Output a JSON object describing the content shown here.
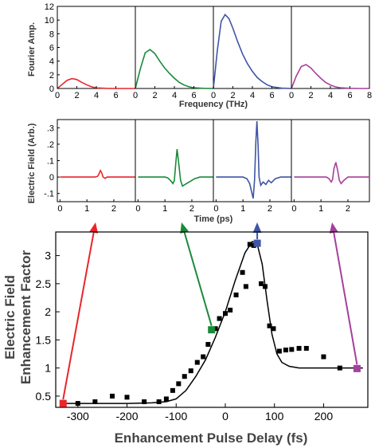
{
  "chart_data": [
    {
      "type": "line",
      "panel": "fourier",
      "ylabel": "Fourier Amp.",
      "xlabel": "Frequency (THz)",
      "xlim": [
        0,
        8
      ],
      "ylim": [
        0,
        12
      ],
      "yticks": [
        0,
        2,
        4,
        6,
        8,
        10,
        12
      ],
      "xticks_subpanel": [
        0,
        2,
        4,
        6
      ],
      "xticks_last": [
        0,
        2,
        4,
        6,
        8
      ],
      "series": [
        {
          "color": "#e8262a",
          "x": [
            0,
            0.5,
            1,
            1.5,
            2,
            2.5,
            3,
            3.5,
            4,
            5,
            6,
            7,
            8
          ],
          "y": [
            0,
            0.6,
            1.2,
            1.45,
            1.3,
            0.9,
            0.55,
            0.25,
            0.08,
            0.02,
            0,
            0,
            0
          ]
        },
        {
          "color": "#1a8a3a",
          "x": [
            0,
            0.5,
            1,
            1.5,
            2,
            2.5,
            3,
            3.5,
            4,
            4.5,
            5,
            5.5,
            6,
            7,
            8
          ],
          "y": [
            0,
            2.8,
            5.2,
            5.7,
            5.1,
            4.0,
            3.0,
            2.2,
            1.5,
            0.9,
            0.5,
            0.25,
            0.1,
            0.02,
            0
          ]
        },
        {
          "color": "#3f55a6",
          "x": [
            0,
            0.4,
            0.8,
            1.2,
            1.6,
            2,
            2.5,
            3,
            3.5,
            4,
            4.5,
            5,
            5.5,
            6,
            7,
            8
          ],
          "y": [
            0,
            5.5,
            9.8,
            10.8,
            10.2,
            8.8,
            6.8,
            5.0,
            3.6,
            2.5,
            1.6,
            1.0,
            0.55,
            0.25,
            0.05,
            0
          ]
        },
        {
          "color": "#a5409b",
          "x": [
            0,
            0.5,
            1,
            1.5,
            2,
            2.5,
            3,
            3.5,
            4,
            4.5,
            5,
            6,
            7,
            8
          ],
          "y": [
            0,
            1.8,
            3.2,
            3.5,
            3.0,
            2.2,
            1.5,
            0.9,
            0.5,
            0.25,
            0.1,
            0.02,
            0,
            0
          ]
        }
      ]
    },
    {
      "type": "line",
      "panel": "field",
      "ylabel": "Electric Field (Arb.)",
      "xlabel": "Time (ps)",
      "xlim": [
        -0.1,
        2.8
      ],
      "ylim": [
        -0.15,
        0.35
      ],
      "yticks": [
        -0.1,
        0,
        0.1,
        0.2,
        0.3
      ],
      "xticks": [
        0,
        1,
        2
      ],
      "series": [
        {
          "color": "#e8262a",
          "x": [
            0,
            1.3,
            1.4,
            1.45,
            1.5,
            1.55,
            1.6,
            1.68,
            1.75,
            2.8
          ],
          "y": [
            0,
            0,
            0.005,
            0.02,
            0.04,
            0.025,
            0.0,
            -0.008,
            0,
            0
          ]
        },
        {
          "color": "#1a8a3a",
          "x": [
            0,
            1.0,
            1.1,
            1.2,
            1.3,
            1.35,
            1.4,
            1.45,
            1.5,
            1.58,
            1.65,
            1.8,
            1.95,
            2.1,
            2.3,
            2.8
          ],
          "y": [
            0,
            0,
            -0.005,
            -0.02,
            -0.04,
            -0.02,
            0.08,
            0.17,
            0.1,
            -0.02,
            -0.055,
            -0.04,
            -0.025,
            -0.01,
            0,
            0
          ]
        },
        {
          "color": "#3f55a6",
          "x": [
            0,
            1.0,
            1.15,
            1.25,
            1.32,
            1.38,
            1.43,
            1.48,
            1.52,
            1.56,
            1.6,
            1.66,
            1.75,
            1.85,
            1.95,
            2.05,
            2.2,
            2.4,
            2.8
          ],
          "y": [
            0,
            0,
            -0.01,
            -0.04,
            -0.09,
            -0.13,
            -0.02,
            0.22,
            0.34,
            0.2,
            0.0,
            -0.05,
            -0.03,
            -0.045,
            -0.02,
            -0.035,
            -0.01,
            0,
            0
          ]
        },
        {
          "color": "#a5409b",
          "x": [
            0,
            1.2,
            1.3,
            1.38,
            1.43,
            1.48,
            1.55,
            1.62,
            1.68,
            1.75,
            1.85,
            2.0,
            2.8
          ],
          "y": [
            0,
            0,
            -0.01,
            -0.03,
            -0.015,
            0.05,
            0.09,
            0.04,
            -0.02,
            -0.04,
            -0.02,
            0,
            0
          ]
        }
      ]
    },
    {
      "type": "scatter",
      "panel": "enhancement",
      "ylabel_line1": "Electric Field",
      "ylabel_line2": "Enhancement Factor",
      "xlabel": "Enhancement Pulse Delay (fs)",
      "xlim": [
        -345,
        290
      ],
      "ylim": [
        0.3,
        3.42
      ],
      "xticks": [
        -300,
        -200,
        -100,
        0,
        100,
        200
      ],
      "yticks": [
        0.5,
        1,
        1.5,
        2,
        2.5,
        3
      ],
      "points": {
        "x": [
          -300,
          -265,
          -230,
          -200,
          -165,
          -135,
          -120,
          -107,
          -95,
          -83,
          -70,
          -57,
          -45,
          -35,
          -20,
          -12,
          0,
          10,
          22,
          35,
          42,
          50,
          58,
          65,
          73,
          81,
          90,
          98,
          110,
          123,
          135,
          150,
          165,
          200,
          233
        ],
        "y": [
          0.37,
          0.4,
          0.5,
          0.48,
          0.4,
          0.4,
          0.45,
          0.6,
          0.72,
          0.85,
          0.95,
          1.1,
          1.2,
          1.42,
          1.7,
          1.88,
          1.97,
          2.03,
          2.3,
          2.7,
          2.45,
          3.2,
          3.18,
          3.2,
          2.5,
          2.45,
          1.75,
          1.7,
          1.3,
          1.32,
          1.33,
          1.35,
          1.35,
          1.2,
          1.0
        ]
      },
      "fit": {
        "x": [
          -330,
          -200,
          -150,
          -120,
          -100,
          -80,
          -60,
          -40,
          -20,
          0,
          20,
          40,
          55,
          65,
          75,
          85,
          95,
          105,
          115,
          130,
          150,
          200,
          280
        ],
        "y": [
          0.37,
          0.37,
          0.38,
          0.4,
          0.45,
          0.6,
          0.85,
          1.15,
          1.55,
          2.0,
          2.55,
          3.05,
          3.25,
          3.2,
          2.85,
          2.2,
          1.6,
          1.25,
          1.1,
          1.03,
          1.0,
          1.0,
          1.0
        ]
      },
      "highlighted_points": [
        {
          "x": -330,
          "y": 0.37,
          "color": "#e8262a"
        },
        {
          "x": -28,
          "y": 1.68,
          "color": "#1a8a3a"
        },
        {
          "x": 65,
          "y": 3.22,
          "color": "#3f55a6"
        },
        {
          "x": 268,
          "y": 0.99,
          "color": "#a5409b"
        }
      ]
    }
  ]
}
